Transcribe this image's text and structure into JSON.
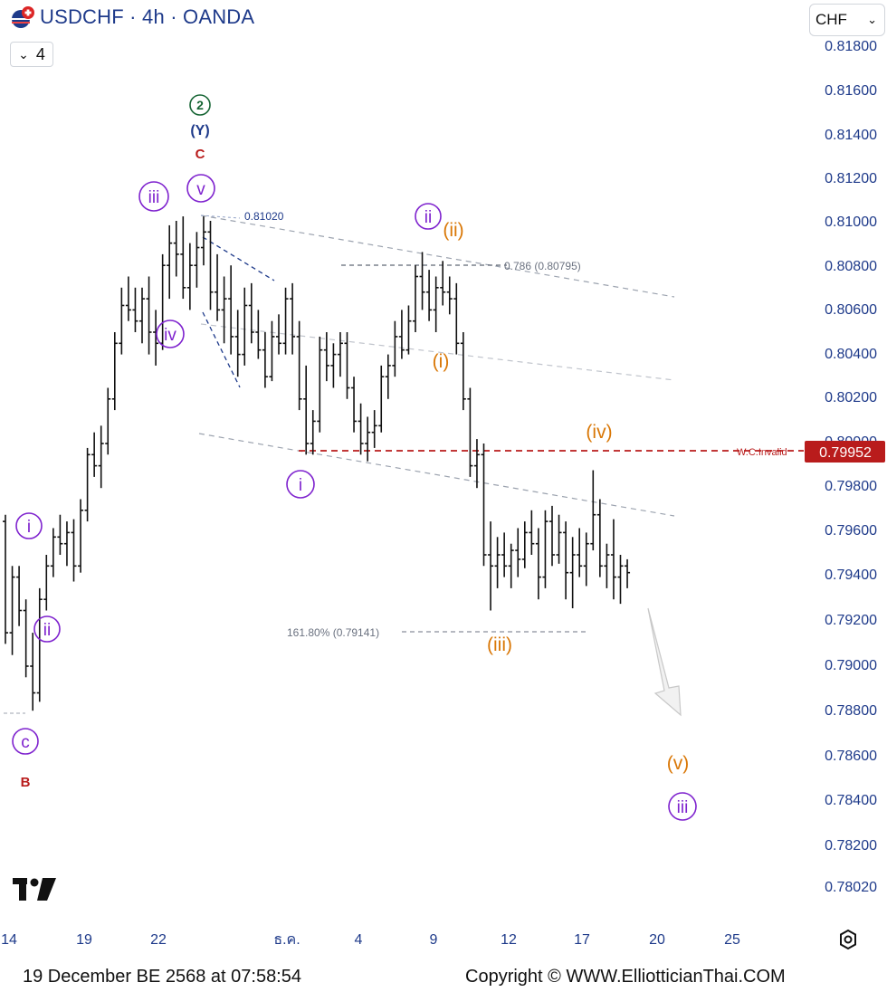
{
  "header": {
    "title": "USDCHF · 4h · OANDA",
    "interval_count": "4",
    "currency": "CHF"
  },
  "chart_data": {
    "type": "candlestick",
    "symbol": "USDCHF",
    "timeframe": "4h",
    "source": "OANDA",
    "ylim": [
      0.78,
      0.8185
    ],
    "y_ticks": [
      "0.81800",
      "0.81600",
      "0.81400",
      "0.81200",
      "0.81000",
      "0.80800",
      "0.80600",
      "0.80400",
      "0.80200",
      "0.80000",
      "0.79800",
      "0.79600",
      "0.79400",
      "0.79200",
      "0.79000",
      "0.78800",
      "0.78600",
      "0.78400",
      "0.78200",
      "0.78020"
    ],
    "x_ticks": [
      "14",
      "19",
      "22",
      "ธ.ค.",
      "4",
      "9",
      "12",
      "17",
      "20",
      "25"
    ],
    "last_price": "0.79952",
    "last_price_color": "#b91c1c",
    "levels": [
      {
        "label": "W.C.Invalid",
        "value": 0.79952,
        "color": "#b91c1c"
      },
      {
        "label": "0.81020",
        "value": 0.8102,
        "color": "#1e3a8a"
      },
      {
        "label": "0.786 (0.80795)",
        "value": 0.80795,
        "color": "#6b7280"
      },
      {
        "label": "161.80% (0.79141)",
        "value": 0.79141,
        "color": "#6b7280"
      }
    ],
    "wave_labels": [
      {
        "text": "i",
        "style": "circle",
        "color": "#7e22ce"
      },
      {
        "text": "ii",
        "style": "circle",
        "color": "#7e22ce"
      },
      {
        "text": "c",
        "style": "circle",
        "color": "#7e22ce"
      },
      {
        "text": "B",
        "style": "plain",
        "color": "#b91c1c"
      },
      {
        "text": "iii",
        "style": "circle",
        "color": "#7e22ce"
      },
      {
        "text": "iv",
        "style": "circle",
        "color": "#7e22ce"
      },
      {
        "text": "v",
        "style": "circle",
        "color": "#7e22ce"
      },
      {
        "text": "C",
        "style": "plain",
        "color": "#b91c1c"
      },
      {
        "text": "(Y)",
        "style": "plain",
        "color": "#1e3a8a"
      },
      {
        "text": "2",
        "style": "circle",
        "color": "#166534"
      },
      {
        "text": "i",
        "style": "circle",
        "color": "#7e22ce"
      },
      {
        "text": "ii",
        "style": "circle",
        "color": "#7e22ce"
      },
      {
        "text": "(ii)",
        "style": "plain",
        "color": "#d97706"
      },
      {
        "text": "(i)",
        "style": "plain",
        "color": "#d97706"
      },
      {
        "text": "(iii)",
        "style": "plain",
        "color": "#d97706"
      },
      {
        "text": "(iv)",
        "style": "plain",
        "color": "#d97706"
      },
      {
        "text": "(v)",
        "style": "plain",
        "color": "#d97706"
      },
      {
        "text": "iii",
        "style": "circle",
        "color": "#7e22ce"
      }
    ],
    "bars": [
      [
        0.7965,
        0.7968,
        0.791,
        0.7915
      ],
      [
        0.7915,
        0.7945,
        0.7905,
        0.794
      ],
      [
        0.794,
        0.7945,
        0.7918,
        0.7925
      ],
      [
        0.7925,
        0.793,
        0.7895,
        0.79
      ],
      [
        0.79,
        0.7915,
        0.788,
        0.7888
      ],
      [
        0.7888,
        0.7935,
        0.7884,
        0.793
      ],
      [
        0.793,
        0.795,
        0.7925,
        0.7945
      ],
      [
        0.7945,
        0.7962,
        0.794,
        0.7958
      ],
      [
        0.7958,
        0.7968,
        0.795,
        0.7955
      ],
      [
        0.7955,
        0.7965,
        0.7945,
        0.796
      ],
      [
        0.796,
        0.7966,
        0.7938,
        0.7945
      ],
      [
        0.7945,
        0.7975,
        0.7942,
        0.797
      ],
      [
        0.797,
        0.7998,
        0.7965,
        0.7995
      ],
      [
        0.7995,
        0.8005,
        0.7985,
        0.799
      ],
      [
        0.799,
        0.8008,
        0.798,
        0.8
      ],
      [
        0.8,
        0.8025,
        0.7995,
        0.802
      ],
      [
        0.802,
        0.805,
        0.8015,
        0.8045
      ],
      [
        0.8045,
        0.807,
        0.804,
        0.8062
      ],
      [
        0.8062,
        0.8075,
        0.8055,
        0.806
      ],
      [
        0.806,
        0.807,
        0.805,
        0.8055
      ],
      [
        0.8055,
        0.807,
        0.8045,
        0.8065
      ],
      [
        0.8065,
        0.8075,
        0.804,
        0.805
      ],
      [
        0.805,
        0.806,
        0.8035,
        0.8045
      ],
      [
        0.8045,
        0.8085,
        0.8042,
        0.808
      ],
      [
        0.808,
        0.8098,
        0.8065,
        0.809
      ],
      [
        0.809,
        0.81,
        0.8075,
        0.8085
      ],
      [
        0.8085,
        0.8102,
        0.8065,
        0.807
      ],
      [
        0.807,
        0.809,
        0.806,
        0.808
      ],
      [
        0.808,
        0.8095,
        0.807,
        0.8088
      ],
      [
        0.8088,
        0.8102,
        0.808,
        0.8095
      ],
      [
        0.8095,
        0.81,
        0.806,
        0.8068
      ],
      [
        0.8068,
        0.8085,
        0.8055,
        0.806
      ],
      [
        0.806,
        0.8075,
        0.8045,
        0.8065
      ],
      [
        0.8065,
        0.808,
        0.804,
        0.8048
      ],
      [
        0.8048,
        0.806,
        0.803,
        0.804
      ],
      [
        0.804,
        0.807,
        0.8035,
        0.8062
      ],
      [
        0.8062,
        0.8072,
        0.8045,
        0.805
      ],
      [
        0.805,
        0.806,
        0.8038,
        0.8042
      ],
      [
        0.8042,
        0.805,
        0.8025,
        0.803
      ],
      [
        0.803,
        0.8055,
        0.8028,
        0.8048
      ],
      [
        0.8048,
        0.8058,
        0.804,
        0.8045
      ],
      [
        0.8045,
        0.807,
        0.804,
        0.8065
      ],
      [
        0.8065,
        0.8072,
        0.804,
        0.8048
      ],
      [
        0.8048,
        0.8055,
        0.8015,
        0.802
      ],
      [
        0.802,
        0.8035,
        0.7995,
        0.8
      ],
      [
        0.8,
        0.8015,
        0.7995,
        0.801
      ],
      [
        0.801,
        0.8048,
        0.8005,
        0.8042
      ],
      [
        0.8042,
        0.805,
        0.8028,
        0.8035
      ],
      [
        0.8035,
        0.8045,
        0.8025,
        0.804
      ],
      [
        0.804,
        0.805,
        0.803,
        0.8045
      ],
      [
        0.8045,
        0.805,
        0.802,
        0.8025
      ],
      [
        0.8025,
        0.803,
        0.8005,
        0.801
      ],
      [
        0.801,
        0.8018,
        0.7995,
        0.8
      ],
      [
        0.8,
        0.8012,
        0.7992,
        0.8005
      ],
      [
        0.8005,
        0.8015,
        0.7998,
        0.8008
      ],
      [
        0.8008,
        0.8035,
        0.8005,
        0.803
      ],
      [
        0.803,
        0.804,
        0.802,
        0.8035
      ],
      [
        0.8035,
        0.8055,
        0.803,
        0.8048
      ],
      [
        0.8048,
        0.806,
        0.8038,
        0.8042
      ],
      [
        0.8042,
        0.8062,
        0.804,
        0.8055
      ],
      [
        0.8055,
        0.808,
        0.805,
        0.8075
      ],
      [
        0.8075,
        0.8086,
        0.806,
        0.8068
      ],
      [
        0.8068,
        0.8078,
        0.8055,
        0.806
      ],
      [
        0.806,
        0.8075,
        0.805,
        0.807
      ],
      [
        0.807,
        0.8082,
        0.8062,
        0.8068
      ],
      [
        0.8068,
        0.8075,
        0.8058,
        0.8065
      ],
      [
        0.8065,
        0.8072,
        0.804,
        0.8045
      ],
      [
        0.8045,
        0.805,
        0.8015,
        0.802
      ],
      [
        0.802,
        0.8025,
        0.7985,
        0.799
      ],
      [
        0.799,
        0.8002,
        0.798,
        0.7995
      ],
      [
        0.7995,
        0.8,
        0.7945,
        0.795
      ],
      [
        0.795,
        0.7965,
        0.7925,
        0.7945
      ],
      [
        0.7945,
        0.7958,
        0.7935,
        0.795
      ],
      [
        0.795,
        0.796,
        0.794,
        0.7945
      ],
      [
        0.7945,
        0.7955,
        0.7935,
        0.7952
      ],
      [
        0.7952,
        0.7962,
        0.794,
        0.7948
      ],
      [
        0.7948,
        0.7965,
        0.7944,
        0.796
      ],
      [
        0.796,
        0.797,
        0.795,
        0.7955
      ],
      [
        0.7955,
        0.7962,
        0.793,
        0.794
      ],
      [
        0.794,
        0.797,
        0.7935,
        0.7965
      ],
      [
        0.7965,
        0.7972,
        0.7945,
        0.795
      ],
      [
        0.795,
        0.7968,
        0.7946,
        0.796
      ],
      [
        0.796,
        0.7965,
        0.793,
        0.7942
      ],
      [
        0.7942,
        0.7958,
        0.7926,
        0.795
      ],
      [
        0.795,
        0.7962,
        0.794,
        0.7945
      ],
      [
        0.7945,
        0.796,
        0.7936,
        0.7955
      ],
      [
        0.7955,
        0.7988,
        0.7952,
        0.7968
      ],
      [
        0.7968,
        0.7975,
        0.794,
        0.7945
      ],
      [
        0.7945,
        0.7955,
        0.7935,
        0.795
      ],
      [
        0.795,
        0.7966,
        0.793,
        0.794
      ],
      [
        0.794,
        0.795,
        0.7928,
        0.7945
      ],
      [
        0.7945,
        0.7948,
        0.7935,
        0.7942
      ]
    ]
  },
  "footer": {
    "date": "19 December BE 2568 at 07:58:54",
    "copyright": "Copyright © WWW.ElliotticianThai.COM"
  }
}
